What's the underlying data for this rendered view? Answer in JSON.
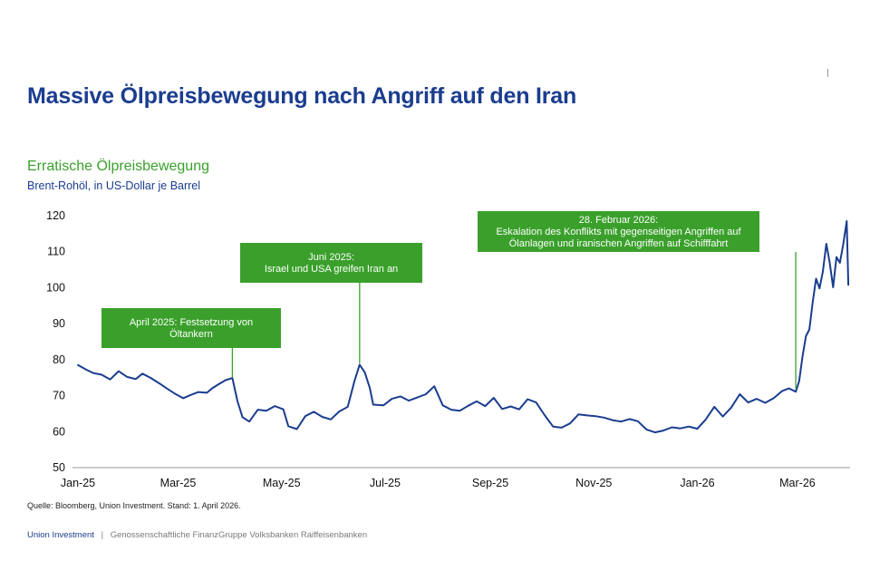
{
  "header": {
    "title": "Massive Ölpreisbewegung nach Angriff auf den Iran"
  },
  "chart_data": {
    "type": "line",
    "title": "Erratische Ölpreisbewegung",
    "subtitle": "Brent-Rohöl, in US-Dollar je Barrel",
    "xlabel": "",
    "ylabel": "",
    "x_ticks": [
      "Jan-25",
      "Mar-25",
      "May-25",
      "Jul-25",
      "Sep-25",
      "Nov-25",
      "Jan-26",
      "Mar-26"
    ],
    "y_ticks": [
      50,
      60,
      70,
      80,
      90,
      100,
      110,
      120
    ],
    "ylim": [
      50,
      120
    ],
    "xlim": [
      "2025-01-01",
      "2026-04-01"
    ],
    "grid": false,
    "line_color": "#1b3d8f",
    "series": [
      {
        "x": [
          "2025-01-01",
          "2025-01-06",
          "2025-01-10",
          "2025-01-15",
          "2025-01-20",
          "2025-01-25",
          "2025-01-30",
          "2025-02-04",
          "2025-02-08",
          "2025-02-13",
          "2025-02-18",
          "2025-02-22",
          "2025-02-27",
          "2025-03-04",
          "2025-03-08",
          "2025-03-13",
          "2025-03-18",
          "2025-03-21",
          "2025-03-25",
          "2025-03-29",
          "2025-04-02",
          "2025-04-05",
          "2025-04-08",
          "2025-04-12",
          "2025-04-17",
          "2025-04-22",
          "2025-04-27",
          "2025-05-02",
          "2025-05-05",
          "2025-05-10",
          "2025-05-15",
          "2025-05-20",
          "2025-05-25",
          "2025-05-30",
          "2025-06-04",
          "2025-06-09",
          "2025-06-13",
          "2025-06-16",
          "2025-06-19",
          "2025-06-22",
          "2025-06-24",
          "2025-06-30",
          "2025-07-05",
          "2025-07-10",
          "2025-07-15",
          "2025-07-20",
          "2025-07-25",
          "2025-07-30",
          "2025-08-04",
          "2025-08-09",
          "2025-08-14",
          "2025-08-19",
          "2025-08-24",
          "2025-08-29",
          "2025-09-03",
          "2025-09-08",
          "2025-09-13",
          "2025-09-18",
          "2025-09-23",
          "2025-09-28",
          "2025-10-03",
          "2025-10-08",
          "2025-10-13",
          "2025-10-18",
          "2025-10-23",
          "2025-10-28",
          "2025-11-02",
          "2025-11-07",
          "2025-11-12",
          "2025-11-17",
          "2025-11-22",
          "2025-11-27",
          "2025-12-02",
          "2025-12-07",
          "2025-12-12",
          "2025-12-17",
          "2025-12-22",
          "2025-12-27",
          "2026-01-01",
          "2026-01-06",
          "2026-01-11",
          "2026-01-16",
          "2026-01-21",
          "2026-01-26",
          "2026-01-31",
          "2026-02-05",
          "2026-02-10",
          "2026-02-15",
          "2026-02-20",
          "2026-02-24",
          "2026-02-28",
          "2026-03-02",
          "2026-03-04",
          "2026-03-06",
          "2026-03-08",
          "2026-03-10",
          "2026-03-12",
          "2026-03-14",
          "2026-03-16",
          "2026-03-18",
          "2026-03-20",
          "2026-03-22",
          "2026-03-24",
          "2026-03-26",
          "2026-03-28",
          "2026-03-30",
          "2026-03-31"
        ],
        "values": [
          78.5,
          77.2,
          76.3,
          75.8,
          74.5,
          76.8,
          75.2,
          74.6,
          76.1,
          74.9,
          73.4,
          72.1,
          70.6,
          69.3,
          70.1,
          71.0,
          70.8,
          72.0,
          73.2,
          74.3,
          74.9,
          68.5,
          64.0,
          62.8,
          66.1,
          65.8,
          67.1,
          66.2,
          61.5,
          60.7,
          64.3,
          65.5,
          64.1,
          63.4,
          65.6,
          66.9,
          74.1,
          78.6,
          76.5,
          72.1,
          67.5,
          67.3,
          69.1,
          69.8,
          68.6,
          69.5,
          70.4,
          72.6,
          67.3,
          66.1,
          65.8,
          67.2,
          68.4,
          67.1,
          69.4,
          66.3,
          67.0,
          66.2,
          69.0,
          68.1,
          64.6,
          61.4,
          61.1,
          62.3,
          64.8,
          64.5,
          64.3,
          63.9,
          63.2,
          62.8,
          63.5,
          62.9,
          60.6,
          59.8,
          60.3,
          61.2,
          60.9,
          61.4,
          60.8,
          63.4,
          66.9,
          64.2,
          66.7,
          70.4,
          68.1,
          69.1,
          68.0,
          69.3,
          71.3,
          72.0,
          71.1,
          74.0,
          81.0,
          86.5,
          88.4,
          96.0,
          102.5,
          99.8,
          104.5,
          112.2,
          107.0,
          100.1,
          108.5,
          106.9,
          112.1,
          118.5,
          100.8
        ]
      }
    ],
    "annotations": [
      {
        "lines": [
          "April 2025: Festsetzung von",
          "Öltankern"
        ],
        "date": "2025-04-02",
        "value": 75.0,
        "anchor": "bottom-left"
      },
      {
        "lines": [
          "Juni 2025:",
          "Israel und USA greifen Iran an"
        ],
        "date": "2025-06-16",
        "value": 79.0,
        "anchor": "top-center"
      },
      {
        "lines": [
          "28. Februar 2026:",
          "Eskalation des Konflikts mit gegenseitigen Angriffen auf",
          "Ölanlagen und iranischen Angriffen auf Schifffahrt"
        ],
        "date": "2026-02-28",
        "value": 72.0,
        "anchor": "top-right"
      }
    ],
    "annotation_color": "#3aa02b"
  },
  "source": "Quelle: Bloomberg, Union Investment. Stand: 1. April 2026.",
  "footer": {
    "brand": "Union Investment",
    "separator": "|",
    "text": "Genossenschaftliche FinanzGruppe Volksbanken Raiffeisenbanken"
  }
}
